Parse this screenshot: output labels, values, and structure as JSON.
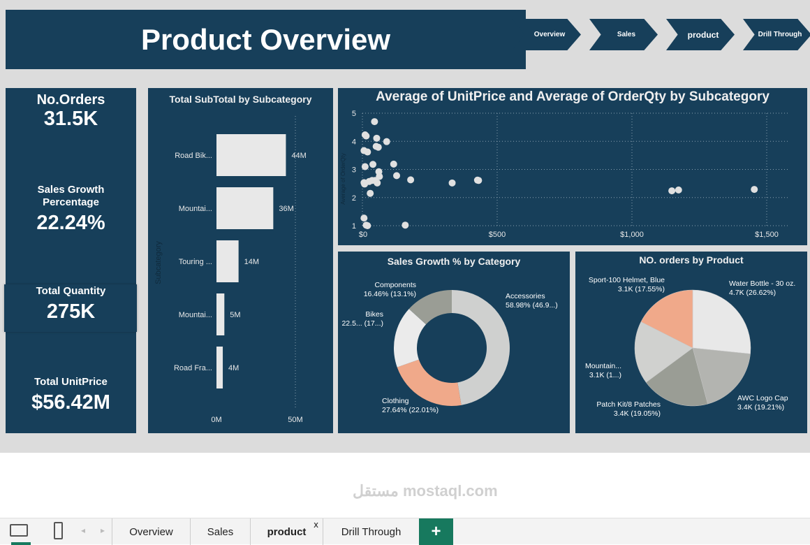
{
  "header": {
    "title": "Product Overview"
  },
  "nav_buttons": [
    "Overview",
    "Sales",
    "product",
    "Drill Through"
  ],
  "kpis": [
    {
      "label": "No.Orders",
      "value": "31.5K"
    },
    {
      "label": "Sales Growth Percentage",
      "value": "22.24%"
    },
    {
      "label": "Total Quantity",
      "value": "275K"
    },
    {
      "label": "Total UnitPrice",
      "value": "$56.42M"
    }
  ],
  "chart_data": [
    {
      "type": "bar",
      "orientation": "horizontal",
      "title": "Total SubTotal by Subcategory",
      "ylabel": "Subcategory",
      "xlabel": "",
      "categories": [
        "Road Bik...",
        "Mountai...",
        "Touring ...",
        "Mountai...",
        "Road Fra..."
      ],
      "values": [
        44,
        36,
        14,
        5,
        4
      ],
      "data_labels": [
        "44M",
        "36M",
        "14M",
        "5M",
        "4M"
      ],
      "xlim": [
        0,
        50
      ],
      "xticks": [
        "0M",
        "50M"
      ],
      "color": "#e8e8e8",
      "grid": true
    },
    {
      "type": "scatter",
      "title": "Average of UnitPrice and Average of OrderQty by Subcategory",
      "xlabel": "",
      "ylabel": "Average of OrderQty",
      "xlim": [
        0,
        1580
      ],
      "ylim": [
        1,
        5
      ],
      "xticks": [
        "$0",
        "$500",
        "$1,000",
        "$1,500"
      ],
      "yticks": [
        "1",
        "2",
        "3",
        "4",
        "5"
      ],
      "grid": true,
      "color": "#e0e0e0",
      "points": [
        [
          45,
          4.7
        ],
        [
          10,
          4.23
        ],
        [
          14,
          4.19
        ],
        [
          53,
          4.11
        ],
        [
          90,
          3.99
        ],
        [
          6,
          3.67
        ],
        [
          19,
          3.62
        ],
        [
          51,
          3.82
        ],
        [
          59,
          3.79
        ],
        [
          10,
          3.1
        ],
        [
          39,
          3.18
        ],
        [
          116,
          3.19
        ],
        [
          61,
          2.92
        ],
        [
          63,
          2.75
        ],
        [
          127,
          2.78
        ],
        [
          179,
          2.63
        ],
        [
          333,
          2.52
        ],
        [
          427,
          2.62
        ],
        [
          431,
          2.61
        ],
        [
          6,
          2.53
        ],
        [
          8,
          2.48
        ],
        [
          25,
          2.57
        ],
        [
          36,
          2.61
        ],
        [
          47,
          2.61
        ],
        [
          55,
          2.52
        ],
        [
          29,
          2.15
        ],
        [
          1148,
          2.24
        ],
        [
          1173,
          2.27
        ],
        [
          1454,
          2.29
        ],
        [
          6,
          1.27
        ],
        [
          14,
          1.02
        ],
        [
          19,
          1.0
        ],
        [
          159,
          1.02
        ]
      ]
    },
    {
      "type": "pie",
      "variant": "donut",
      "title": "Sales Growth % by Category",
      "slices": [
        {
          "label": "Accessories",
          "text": "58.98% (46.9...)",
          "value": 46.9,
          "color": "#cfd0cf"
        },
        {
          "label": "Clothing",
          "text": "27.64% (22.01%)",
          "value": 22.01,
          "color": "#f0a98a"
        },
        {
          "label": "Bikes",
          "text": "22.5... (17...)",
          "value": 17,
          "color": "#ebebeb"
        },
        {
          "label": "Components",
          "text": "16.46% (13.1%)",
          "value": 13.1,
          "color": "#9a9d95"
        }
      ]
    },
    {
      "type": "pie",
      "title": "NO. orders by Product",
      "slices": [
        {
          "label": "Water Bottle - 30 oz.",
          "text": "4.7K (26.62%)",
          "value": 26.62,
          "color": "#e8e8e8"
        },
        {
          "label": "AWC Logo Cap",
          "text": "3.4K (19.21%)",
          "value": 19.21,
          "color": "#b3b4b0"
        },
        {
          "label": "Patch Kit/8 Patches",
          "text": "3.4K (19.05%)",
          "value": 19.05,
          "color": "#9a9d95"
        },
        {
          "label": "Mountain...",
          "text": "3.1K (1...)",
          "value": 17.57,
          "color": "#d0d1cf"
        },
        {
          "label": "Sport-100 Helmet, Blue",
          "text": "3.1K (17.55%)",
          "value": 17.55,
          "color": "#f0a98a"
        }
      ]
    }
  ],
  "bottom_tabs": {
    "items": [
      "Overview",
      "Sales",
      "product",
      "Drill Through"
    ],
    "active": "product",
    "close": "x",
    "add": "+"
  },
  "watermark": "مستقل mostaql.com"
}
